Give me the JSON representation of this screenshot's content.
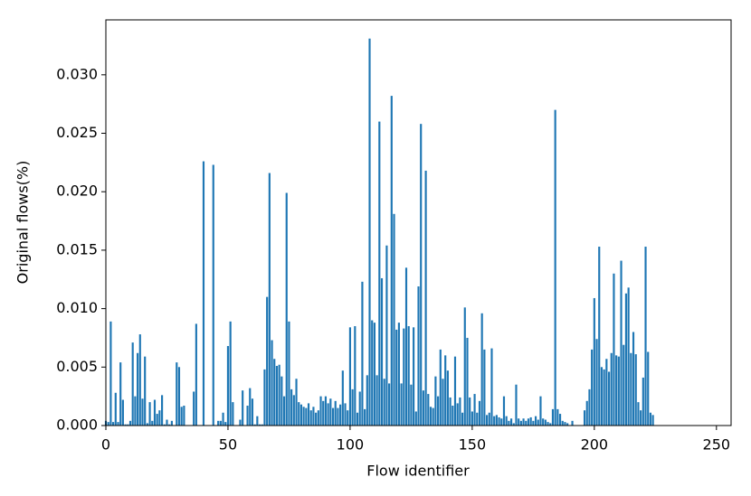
{
  "chart_data": {
    "type": "bar",
    "color": "#1f77b4",
    "xlabel": "Flow identifier",
    "ylabel": "Original flows(%)",
    "xlim": [
      0,
      256
    ],
    "ylim": [
      0,
      0.0347
    ],
    "xticks": [
      0,
      50,
      100,
      150,
      200,
      250
    ],
    "yticks": [
      {
        "value": 0,
        "label": "0.000"
      },
      {
        "value": 0.005,
        "label": "0.005"
      },
      {
        "value": 0.01,
        "label": "0.010"
      },
      {
        "value": 0.015,
        "label": "0.015"
      },
      {
        "value": 0.02,
        "label": "0.020"
      },
      {
        "value": 0.025,
        "label": "0.025"
      },
      {
        "value": 0.03,
        "label": "0.030"
      }
    ],
    "x": [
      0,
      1,
      2,
      3,
      4,
      5,
      6,
      7,
      8,
      9,
      10,
      11,
      12,
      13,
      14,
      15,
      16,
      17,
      18,
      19,
      20,
      21,
      22,
      23,
      24,
      25,
      26,
      27,
      28,
      29,
      30,
      31,
      32,
      33,
      34,
      35,
      36,
      37,
      38,
      39,
      40,
      41,
      42,
      43,
      44,
      45,
      46,
      47,
      48,
      49,
      50,
      51,
      52,
      53,
      54,
      55,
      56,
      57,
      58,
      59,
      60,
      61,
      62,
      63,
      64,
      65,
      66,
      67,
      68,
      69,
      70,
      71,
      72,
      73,
      74,
      75,
      76,
      77,
      78,
      79,
      80,
      81,
      82,
      83,
      84,
      85,
      86,
      87,
      88,
      89,
      90,
      91,
      92,
      93,
      94,
      95,
      96,
      97,
      98,
      99,
      100,
      101,
      102,
      103,
      104,
      105,
      106,
      107,
      108,
      109,
      110,
      111,
      112,
      113,
      114,
      115,
      116,
      117,
      118,
      119,
      120,
      121,
      122,
      123,
      124,
      125,
      126,
      127,
      128,
      129,
      130,
      131,
      132,
      133,
      134,
      135,
      136,
      137,
      138,
      139,
      140,
      141,
      142,
      143,
      144,
      145,
      146,
      147,
      148,
      149,
      150,
      151,
      152,
      153,
      154,
      155,
      156,
      157,
      158,
      159,
      160,
      161,
      162,
      163,
      164,
      165,
      166,
      167,
      168,
      169,
      170,
      171,
      172,
      173,
      174,
      175,
      176,
      177,
      178,
      179,
      180,
      181,
      182,
      183,
      184,
      185,
      186,
      187,
      188,
      189,
      190,
      191,
      192,
      193,
      194,
      195,
      196,
      197,
      198,
      199,
      200,
      201,
      202,
      203,
      204,
      205,
      206,
      207,
      208,
      209,
      210,
      211,
      212,
      213,
      214,
      215,
      216,
      217,
      218,
      219,
      220,
      221,
      222,
      223,
      224
    ],
    "values": [
      0.0004,
      0.0003,
      0.0089,
      0.0003,
      0.0028,
      0.0003,
      0.0054,
      0.0022,
      0.0001,
      0.0001,
      0.0004,
      0.0071,
      0.0025,
      0.0062,
      0.0078,
      0.0023,
      0.0059,
      0.0002,
      0.002,
      0.0004,
      0.0022,
      0.001,
      0.0013,
      0.0026,
      0.0001,
      0.0005,
      0.0001,
      0.0004,
      0,
      0.0054,
      0.005,
      0.0016,
      0.0017,
      0,
      0,
      0,
      0.0029,
      0.0087,
      0,
      0,
      0.0226,
      0,
      0,
      0,
      0.0223,
      0,
      0.0004,
      0.0004,
      0.0011,
      0.0003,
      0.0068,
      0.0089,
      0.002,
      0,
      0,
      0.0005,
      0.003,
      0,
      0.0017,
      0.0032,
      0.0023,
      0.0001,
      0.0008,
      0.0001,
      0.0001,
      0.0048,
      0.011,
      0.0216,
      0.0073,
      0.0057,
      0.0051,
      0.0052,
      0.0042,
      0.0025,
      0.0199,
      0.0089,
      0.0031,
      0.0026,
      0.004,
      0.002,
      0.0018,
      0.0016,
      0.0015,
      0.0019,
      0.0013,
      0.0016,
      0.0011,
      0.0013,
      0.0025,
      0.0021,
      0.0025,
      0.0019,
      0.0023,
      0.0015,
      0.0021,
      0.0015,
      0.0018,
      0.0047,
      0.0019,
      0.0013,
      0.0084,
      0.0031,
      0.0085,
      0.0011,
      0.0029,
      0.0123,
      0.0014,
      0.0043,
      0.0331,
      0.009,
      0.0088,
      0.0043,
      0.026,
      0.0126,
      0.004,
      0.0154,
      0.0036,
      0.0282,
      0.0181,
      0.0082,
      0.0088,
      0.0036,
      0.0083,
      0.0135,
      0.0085,
      0.0035,
      0.0084,
      0.0012,
      0.0119,
      0.0258,
      0.003,
      0.0218,
      0.0027,
      0.0016,
      0.0015,
      0.0042,
      0.0025,
      0.0065,
      0.004,
      0.006,
      0.0047,
      0.0024,
      0.0017,
      0.0059,
      0.0019,
      0.0024,
      0.0011,
      0.0101,
      0.0075,
      0.0024,
      0.0012,
      0.0027,
      0.0011,
      0.0021,
      0.0096,
      0.0065,
      0.0009,
      0.0011,
      0.0066,
      0.0008,
      0.0009,
      0.0007,
      0.0006,
      0.0025,
      0.0008,
      0.0004,
      0.0006,
      0.0002,
      0.0035,
      0.0006,
      0.0004,
      0.0006,
      0.0004,
      0.0006,
      0.0007,
      0.0004,
      0.0008,
      0.0005,
      0.0025,
      0.0006,
      0.0005,
      0.0003,
      0.0002,
      0.0014,
      0.027,
      0.0014,
      0.001,
      0.0004,
      0.0003,
      0.0002,
      0,
      0.0004,
      0,
      0,
      0,
      0,
      0.0013,
      0.0021,
      0.0031,
      0.0065,
      0.0109,
      0.0074,
      0.0153,
      0.005,
      0.0048,
      0.0057,
      0.0046,
      0.0062,
      0.013,
      0.006,
      0.0059,
      0.0141,
      0.0069,
      0.0113,
      0.0118,
      0.0062,
      0.008,
      0.0061,
      0.002,
      0.0013,
      0.0041,
      0.0153,
      0.0063,
      0.0011,
      0.0009
    ]
  }
}
